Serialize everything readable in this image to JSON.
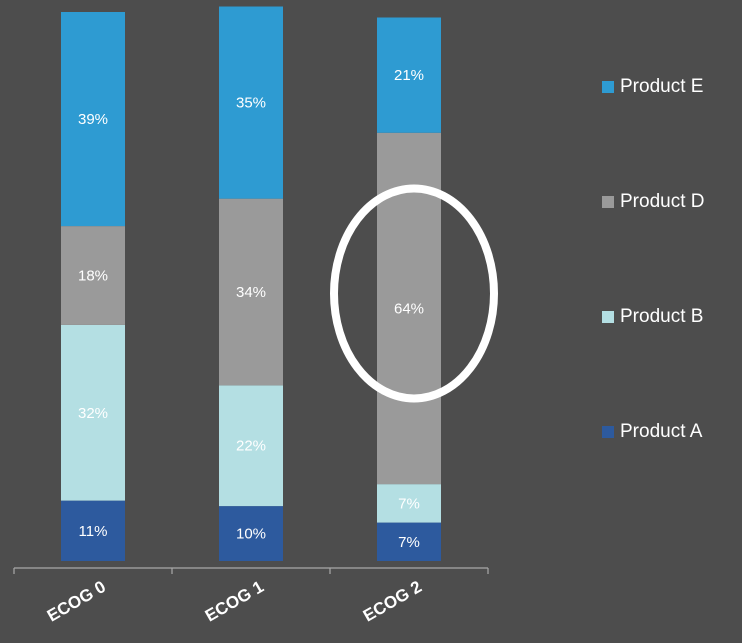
{
  "chart_data": {
    "type": "bar",
    "stacked": true,
    "normalized_percent": true,
    "categories": [
      "ECOG 0",
      "ECOG 1",
      "ECOG 2"
    ],
    "series": [
      {
        "name": "Product A",
        "color": "#2d5a9e",
        "values": [
          11,
          10,
          7
        ],
        "labels": [
          "11%",
          "10%",
          "7%"
        ]
      },
      {
        "name": "Product B",
        "color": "#b4dfe3",
        "values": [
          32,
          22,
          7
        ],
        "labels": [
          "32%",
          "22%",
          "7%"
        ]
      },
      {
        "name": "Product D",
        "color": "#9a9a9a",
        "values": [
          18,
          34,
          64
        ],
        "labels": [
          "18%",
          "34%",
          "64%"
        ]
      },
      {
        "name": "Product E",
        "color": "#2e9bd2",
        "values": [
          39,
          35,
          21
        ],
        "labels": [
          "39%",
          "35%",
          "21%"
        ]
      }
    ],
    "legend_order": [
      "Product E",
      "Product D",
      "Product B",
      "Product A"
    ],
    "legend_position": "right",
    "ylim": [
      0,
      100
    ],
    "grid": false,
    "annotation": {
      "type": "ellipse-highlight",
      "category": "ECOG 2",
      "series": "Product D",
      "color": "#ffffff"
    },
    "background": "#4d4d4d"
  }
}
